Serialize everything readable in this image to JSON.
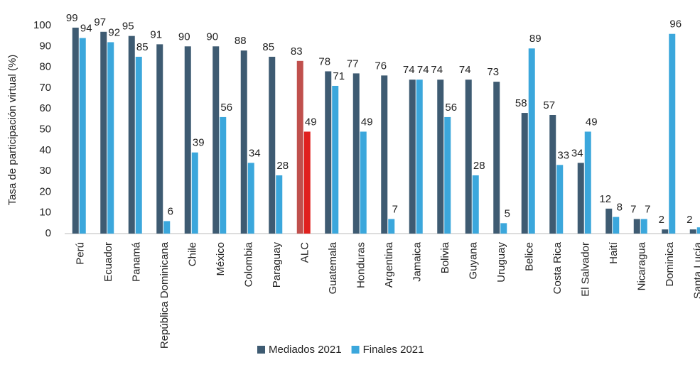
{
  "chart_data": {
    "type": "bar",
    "y_axis_label": "Tasa de participación virtual (%)",
    "categories": [
      "Perú",
      "Ecuador",
      "Panamá",
      "República Dominicana",
      "Chile",
      "México",
      "Colombia",
      "Paraguay",
      "ALC",
      "Guatemala",
      "Honduras",
      "Argentina",
      "Jamaica",
      "Bolivia",
      "Guyana",
      "Uruguay",
      "Belice",
      "Costa Rica",
      "El Salvador",
      "Haití",
      "Nicaragua",
      "Dominica",
      "Santa Lucía"
    ],
    "series": [
      {
        "name": "Mediados 2021",
        "color": "#3e5b72",
        "values": [
          99,
          97,
          95,
          91,
          90,
          90,
          88,
          85,
          83,
          78,
          77,
          76,
          74,
          74,
          74,
          73,
          58,
          57,
          34,
          12,
          7,
          2,
          2
        ]
      },
      {
        "name": "Finales 2021",
        "color": "#3ba7dc",
        "values": [
          94,
          92,
          85,
          6,
          39,
          56,
          34,
          28,
          49,
          71,
          49,
          7,
          74,
          56,
          28,
          5,
          89,
          33,
          49,
          8,
          7,
          96,
          3
        ]
      }
    ],
    "highlight": {
      "index": 8,
      "colors": [
        "#c0504d",
        "#e0201e"
      ]
    },
    "ylim": [
      0,
      100
    ],
    "yticks": [
      0,
      10,
      20,
      30,
      40,
      50,
      60,
      70,
      80,
      90,
      100
    ],
    "grid": false,
    "legend": "bottom"
  }
}
